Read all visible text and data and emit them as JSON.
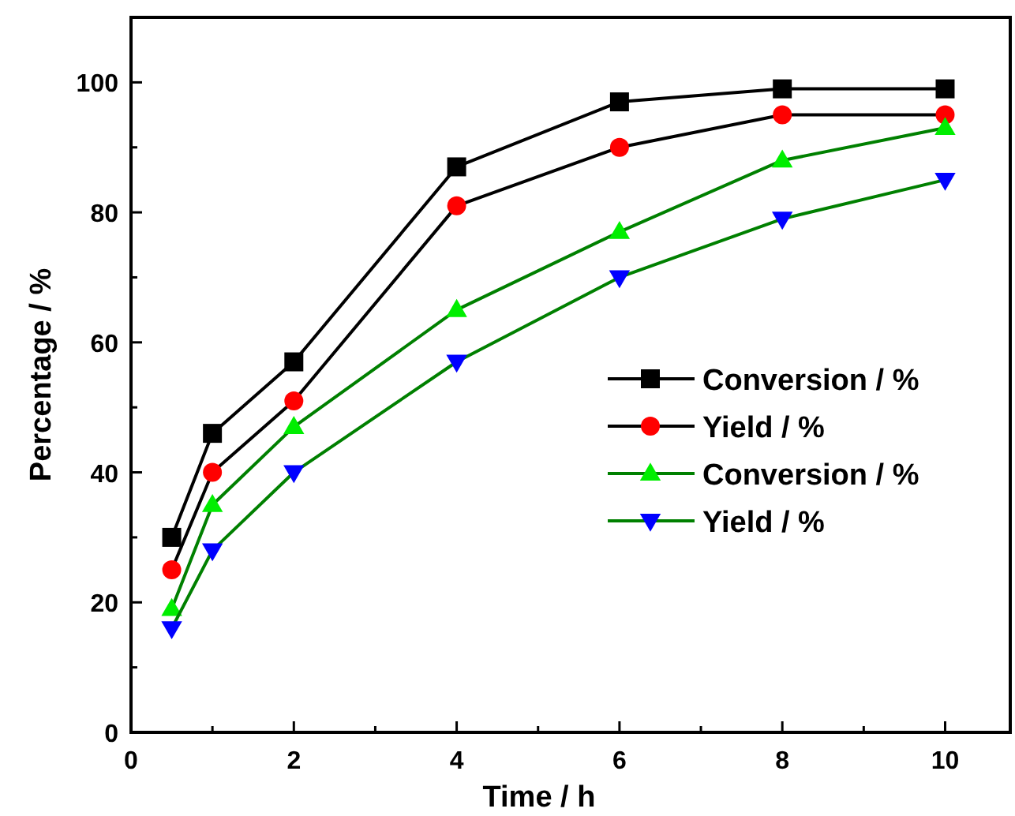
{
  "chart_data": {
    "type": "line",
    "xlabel": "Time / h",
    "ylabel": "Percentage / %",
    "x": [
      0.5,
      1,
      2,
      4,
      6,
      8,
      10
    ],
    "xlim": [
      0,
      10.8
    ],
    "xticks": [
      0,
      {
        "value": 1,
        "label": null
      },
      2,
      {
        "value": 3,
        "label": null
      },
      4,
      {
        "value": 5,
        "label": null
      },
      6,
      {
        "value": 7,
        "label": null
      },
      8,
      {
        "value": 9,
        "label": null
      },
      10
    ],
    "ylim": [
      0,
      110
    ],
    "yticks": [
      0,
      {
        "value": 10,
        "label": null
      },
      20,
      {
        "value": 30,
        "label": null
      },
      40,
      {
        "value": 50,
        "label": null
      },
      60,
      {
        "value": 70,
        "label": null
      },
      80,
      {
        "value": 90,
        "label": null
      },
      100
    ],
    "grid": false,
    "legend": "right",
    "line_style": "solid",
    "series": [
      {
        "name": "Conversion / %",
        "color": "#000000",
        "colors": [
          "#000000",
          "#000000",
          "#000000",
          "#000000",
          "#000000",
          "#000000",
          "#000000"
        ],
        "marker": "square",
        "values": [
          30,
          46,
          57,
          87,
          97,
          99,
          99
        ]
      },
      {
        "name": "Yield / %",
        "color": "#000000",
        "colors": [
          "#ff0000",
          "#ff0000",
          "#ff0000",
          "#ff0000",
          "#ff0000",
          "#ff0000",
          "#ff0000"
        ],
        "marker": "circle",
        "values": [
          25,
          40,
          51,
          81,
          90,
          95,
          95
        ]
      },
      {
        "name": "Conversion / %",
        "color": "#008000",
        "colors": [
          "#00ee00",
          "#00ee00",
          "#00ee00",
          "#00ee00",
          "#00ee00",
          "#00ee00",
          "#00ee00"
        ],
        "marker": "triangle",
        "values": [
          19,
          35,
          47,
          65,
          77,
          88,
          93
        ]
      },
      {
        "name": "Yield / %",
        "color": "#008000",
        "colors": [
          "#0000ff",
          "#0000ff",
          "#0000ff",
          "#0000ff",
          "#0000ff",
          "#0000ff",
          "#0000ff"
        ],
        "marker": "triangle-down",
        "values": [
          16,
          28,
          40,
          57,
          70,
          79,
          85
        ]
      }
    ]
  }
}
